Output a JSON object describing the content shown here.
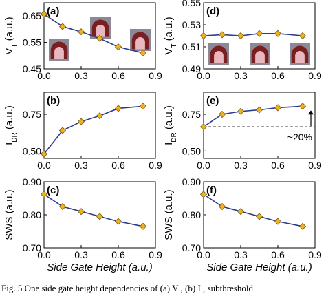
{
  "colors": {
    "line": "#2b3a8c",
    "marker_fill": "#f2b01e",
    "marker_stroke": "#6b5a10",
    "frame": "#000000",
    "gate_bg": "#8c8898",
    "gate_fill": "#7a1f1f",
    "gate_inner": "#e8b7bf"
  },
  "caption": "Fig. 5   One side gate height dependencies of (a) V  , (b) I  , subthreshold",
  "chart_data": [
    {
      "id": "a",
      "type": "line",
      "tag": "(a)",
      "ylabel_main": "V",
      "ylabel_sub": "T",
      "ylabel_unit": " (a.u.)",
      "xlabel": "",
      "x": [
        0.0,
        0.15,
        0.3,
        0.45,
        0.6,
        0.8
      ],
      "values": [
        0.657,
        0.61,
        0.59,
        0.565,
        0.533,
        0.51
      ],
      "ylim": [
        0.45,
        0.7
      ],
      "yticks": [
        "0.45",
        "0.55",
        "0.65"
      ],
      "xlim": [
        0.0,
        0.9
      ],
      "xticks": [
        "0.0",
        "0.3",
        "0.6",
        "0.9"
      ],
      "gate_icons": true
    },
    {
      "id": "d",
      "type": "line",
      "tag": "(d)",
      "ylabel_main": "V",
      "ylabel_sub": "T",
      "ylabel_unit": " (a.u.)",
      "xlabel": "",
      "x": [
        0.0,
        0.15,
        0.3,
        0.45,
        0.6,
        0.8
      ],
      "values": [
        0.52,
        0.521,
        0.52,
        0.522,
        0.522,
        0.52
      ],
      "ylim": [
        0.49,
        0.55
      ],
      "yticks": [
        "0.49",
        "0.51",
        "0.53",
        "0.55"
      ],
      "xlim": [
        0.0,
        0.9
      ],
      "xticks": [
        "0.0",
        "0.3",
        "0.6",
        "0.9"
      ],
      "gate_icons": true
    },
    {
      "id": "b",
      "type": "line",
      "tag": "(b)",
      "ylabel_main": "I",
      "ylabel_sub": "DR",
      "ylabel_unit": " (a.u.)",
      "xlabel": "",
      "x": [
        0.0,
        0.15,
        0.3,
        0.45,
        0.6,
        0.8
      ],
      "values": [
        0.48,
        0.64,
        0.7,
        0.74,
        0.79,
        0.805
      ],
      "ylim": [
        0.45,
        0.9
      ],
      "yticks": [
        "0.50",
        "0.75"
      ],
      "xlim": [
        0.0,
        0.9
      ],
      "xticks": [
        "0.0",
        "0.3",
        "0.6",
        "0.9"
      ]
    },
    {
      "id": "e",
      "type": "line",
      "tag": "(e)",
      "ylabel_main": "I",
      "ylabel_sub": "DR",
      "ylabel_unit": " (a.u.)",
      "xlabel": "",
      "x": [
        0.0,
        0.15,
        0.3,
        0.45,
        0.6,
        0.8
      ],
      "values": [
        0.665,
        0.75,
        0.77,
        0.78,
        0.795,
        0.805
      ],
      "ylim": [
        0.45,
        0.9
      ],
      "yticks": [
        "0.50",
        "0.75"
      ],
      "xlim": [
        0.0,
        0.9
      ],
      "xticks": [
        "0.0",
        "0.3",
        "0.6",
        "0.9"
      ],
      "annotation": {
        "text": "~20%",
        "ref_value": 0.665
      }
    },
    {
      "id": "c",
      "type": "line",
      "tag": "(c)",
      "ylabel_main": "SWS",
      "ylabel_sub": "",
      "ylabel_unit": " (a.u.)",
      "xlabel": "Side Gate Height (a.u.)",
      "x": [
        0.0,
        0.15,
        0.3,
        0.45,
        0.6,
        0.8
      ],
      "values": [
        0.862,
        0.825,
        0.81,
        0.795,
        0.78,
        0.765
      ],
      "ylim": [
        0.7,
        0.9
      ],
      "yticks": [
        "0.70",
        "0.80",
        "0.90"
      ],
      "xlim": [
        0.0,
        0.9
      ],
      "xticks": [
        "0.0",
        "0.3",
        "0.6",
        "0.9"
      ]
    },
    {
      "id": "f",
      "type": "line",
      "tag": "(f)",
      "ylabel_main": "SWS",
      "ylabel_sub": "",
      "ylabel_unit": " (a.u.)",
      "xlabel": "Side Gate Height (a.u.)",
      "x": [
        0.0,
        0.15,
        0.3,
        0.45,
        0.6,
        0.8
      ],
      "values": [
        0.862,
        0.825,
        0.81,
        0.795,
        0.78,
        0.765
      ],
      "ylim": [
        0.7,
        0.9
      ],
      "yticks": [
        "0.70",
        "0.80",
        "0.90"
      ],
      "xlim": [
        0.0,
        0.9
      ],
      "xticks": [
        "0.0",
        "0.3",
        "0.6",
        "0.9"
      ]
    }
  ]
}
